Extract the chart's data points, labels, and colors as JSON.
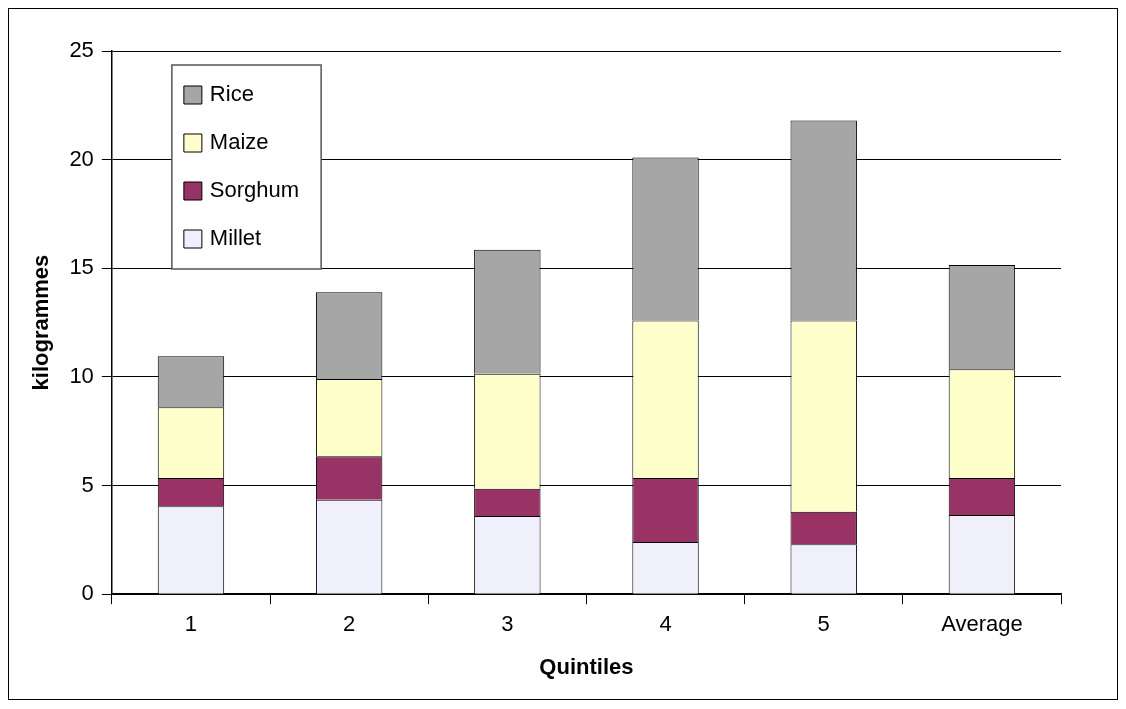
{
  "chart_data": {
    "type": "bar",
    "stacked": true,
    "xlabel": "Quintiles",
    "ylabel": "kilogrammes",
    "categories": [
      "1",
      "2",
      "3",
      "4",
      "5",
      "Average"
    ],
    "series": [
      {
        "name": "Millet",
        "color": "#f0f0fc",
        "values": [
          4.05,
          4.35,
          3.6,
          2.4,
          2.3,
          3.65
        ]
      },
      {
        "name": "Sorghum",
        "color": "#993366",
        "values": [
          1.3,
          2.0,
          1.25,
          2.95,
          1.5,
          1.7
        ]
      },
      {
        "name": "Maize",
        "color": "#ffffcc",
        "values": [
          3.25,
          3.55,
          5.3,
          7.25,
          8.8,
          5.0
        ]
      },
      {
        "name": "Rice",
        "color": "#a6a6a6",
        "values": [
          2.35,
          4.0,
          5.7,
          7.5,
          9.2,
          4.8
        ]
      }
    ],
    "ylim": [
      0,
      25
    ],
    "yticks": [
      0,
      5,
      10,
      15,
      20,
      25
    ],
    "grid": "y",
    "legend": "top left"
  }
}
